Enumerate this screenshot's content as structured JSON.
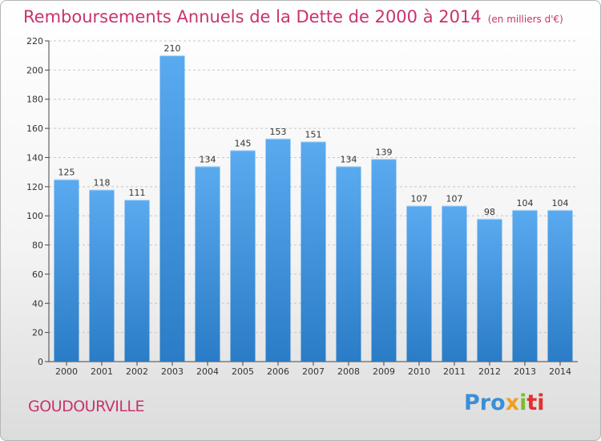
{
  "title": "Remboursements Annuels de la Dette de 2000 à 2014",
  "subtitle": "(en milliers d'€)",
  "commune": "GOUDOURVILLE",
  "logo": {
    "parts": [
      "Pro",
      "x",
      "i",
      "ti"
    ]
  },
  "colors": {
    "title": "#c8336e",
    "bar_top": "#5aaaf0",
    "bar_bottom": "#2a7cc6",
    "grid": "#c8c8c8"
  },
  "chart_data": {
    "type": "bar",
    "title": "Remboursements Annuels de la Dette de 2000 à 2014",
    "subtitle": "(en milliers d'€)",
    "categories": [
      "2000",
      "2001",
      "2002",
      "2003",
      "2004",
      "2005",
      "2006",
      "2007",
      "2008",
      "2009",
      "2010",
      "2011",
      "2012",
      "2013",
      "2014"
    ],
    "values": [
      125,
      118,
      111,
      210,
      134,
      145,
      153,
      151,
      134,
      139,
      107,
      107,
      98,
      104,
      104
    ],
    "value_labels": [
      "125",
      "118",
      "111",
      "210",
      "134",
      "145",
      "153",
      "151",
      "134",
      "139",
      "107",
      "107",
      "98",
      "104",
      "104"
    ],
    "yticks": [
      0,
      20,
      40,
      60,
      80,
      100,
      120,
      140,
      160,
      180,
      200,
      220
    ],
    "ylim": [
      0,
      220
    ],
    "xlabel": "",
    "ylabel": "",
    "grid": true,
    "legend": "none"
  }
}
